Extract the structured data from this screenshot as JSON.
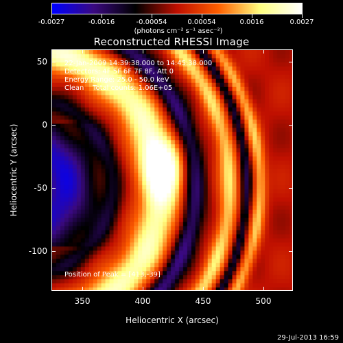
{
  "colorbar": {
    "ticks": [
      "-0.0027",
      "-0.0016",
      "-0.00054",
      "0.00054",
      "0.0016",
      "0.0027"
    ],
    "units": "(photons cm⁻² s⁻¹ asec⁻²)",
    "colors": [
      "#0000ff",
      "#3b0a80",
      "#000000",
      "#c01000",
      "#ff6000",
      "#ffff80",
      "#ffffff"
    ]
  },
  "title": "Reconstructed RHESSI Image",
  "info": {
    "time_range": "22-Jan-2009 14:39:38.000 to 14:45:38.000",
    "detectors": "Detectors: 4F 5F 6F 7F 8F, Att 0",
    "energy": "Energy Range: 25.0 - 50.0 keV",
    "clean": "Clean    Total counts: 1.06E+05",
    "peak": "Position of Peak = [413,-39]"
  },
  "axes": {
    "xlabel": "Heliocentric X (arcsec)",
    "ylabel": "Heliocentric Y (arcsec)",
    "x_ticks": [
      "350",
      "400",
      "450",
      "500"
    ],
    "y_ticks": [
      "50",
      "0",
      "-50",
      "-100"
    ]
  },
  "footer": {
    "date": "29-Jul-2013 16:59"
  }
}
